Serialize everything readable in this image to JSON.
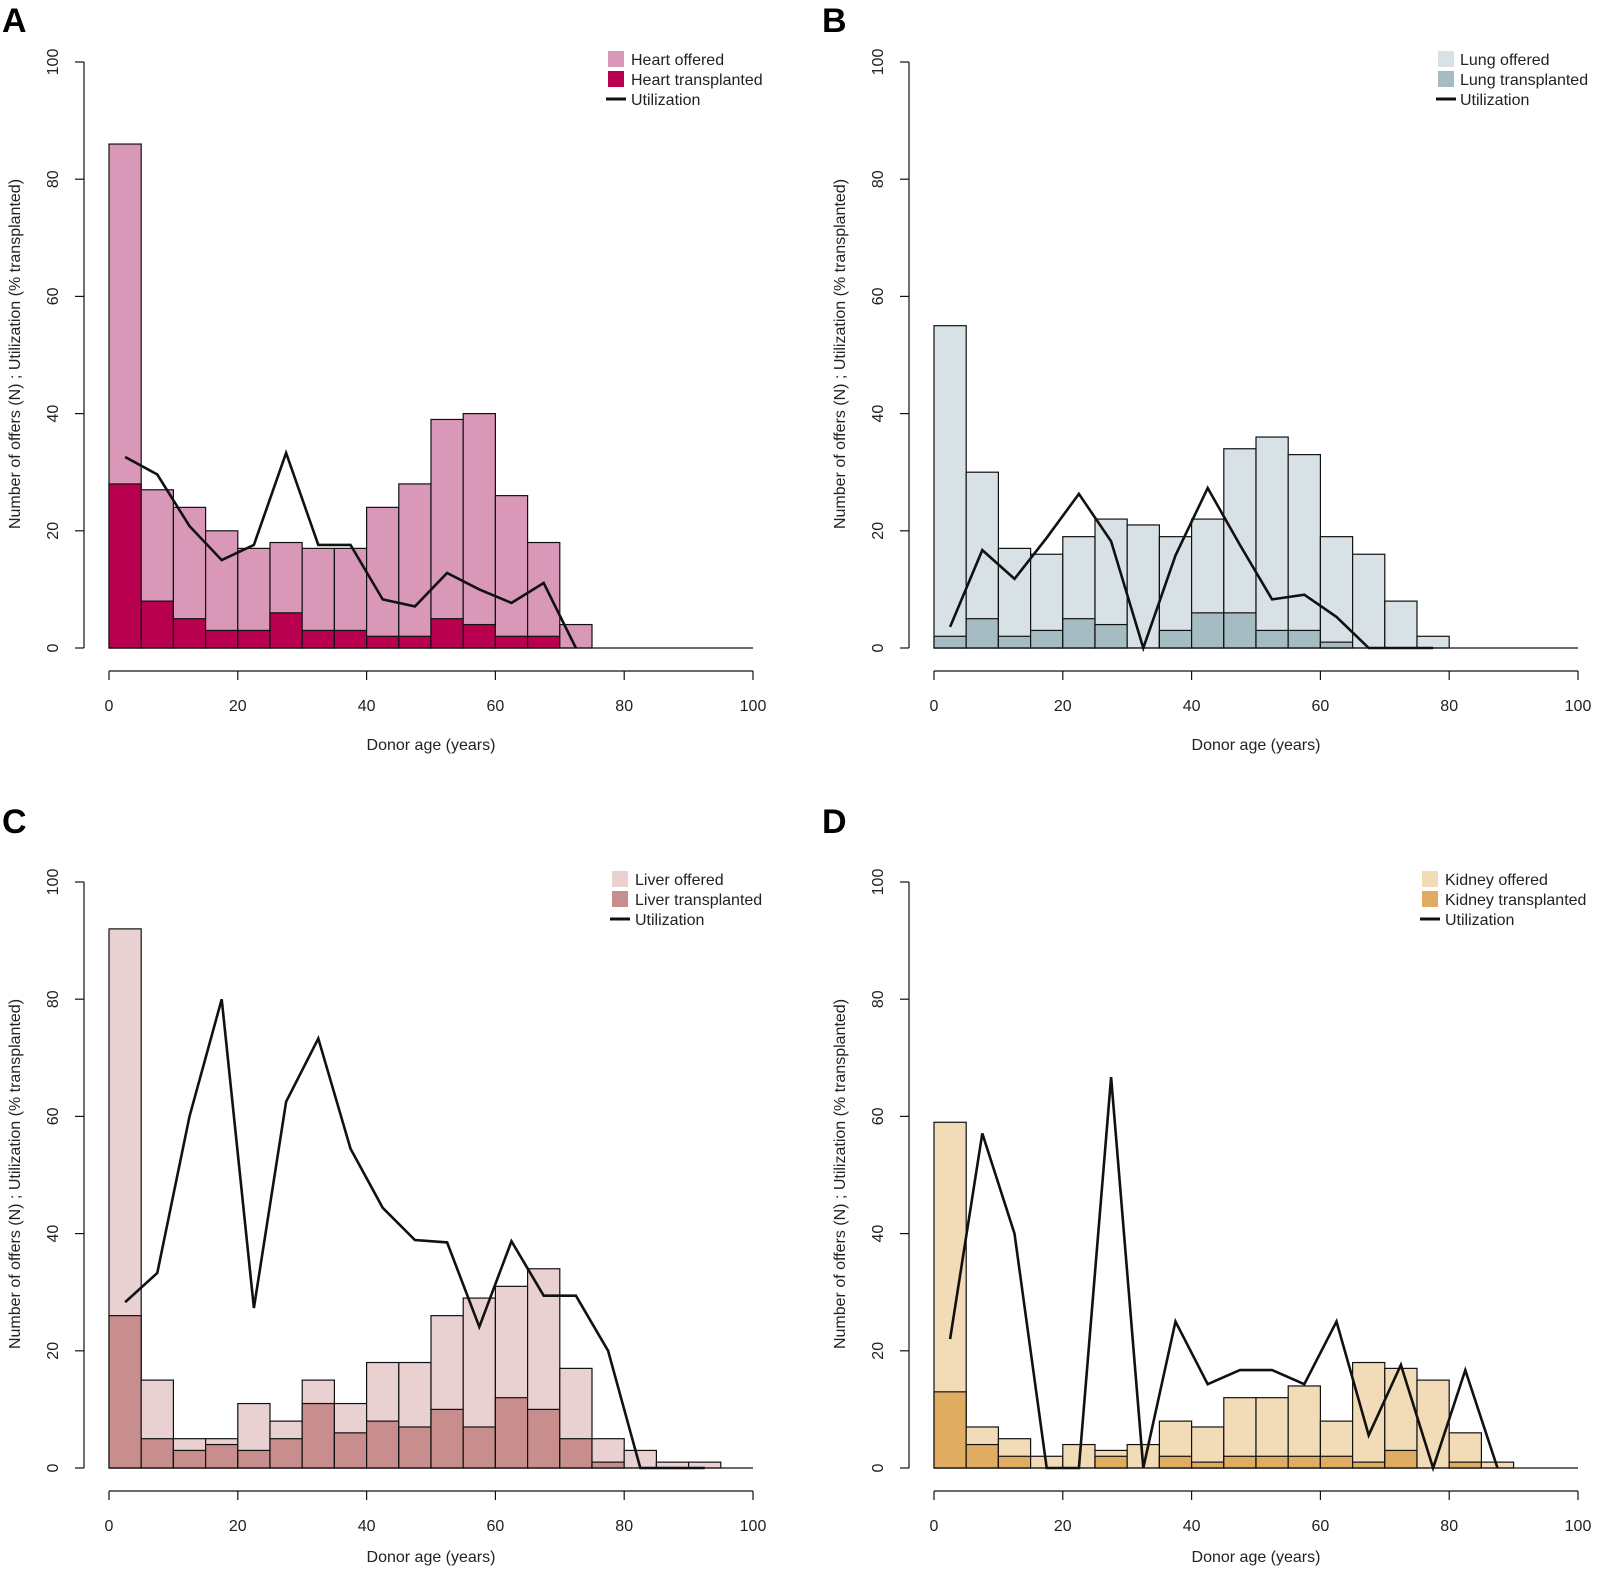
{
  "chart_data": [
    {
      "panel": "A",
      "type": "bar",
      "xlabel": "Donor age (years)",
      "ylabel": "Number of offers (N) ; Utilization (% transplanted)",
      "xlim": [
        0,
        100
      ],
      "ylim": [
        0,
        100
      ],
      "xticks": [
        0,
        20,
        40,
        60,
        80,
        100
      ],
      "yticks": [
        0,
        20,
        40,
        60,
        80,
        100
      ],
      "bin_starts": [
        0,
        5,
        10,
        15,
        20,
        25,
        30,
        35,
        40,
        45,
        50,
        55,
        60,
        65,
        70
      ],
      "bin_width": 5,
      "offered": [
        86,
        27,
        24,
        20,
        17,
        18,
        17,
        17,
        24,
        28,
        39,
        40,
        26,
        18,
        4
      ],
      "transplanted": [
        28,
        8,
        5,
        3,
        3,
        6,
        3,
        3,
        2,
        2,
        5,
        4,
        2,
        2,
        0
      ],
      "utilization_x": [
        2.5,
        7.5,
        12.5,
        17.5,
        22.5,
        27.5,
        32.5,
        37.5,
        42.5,
        47.5,
        52.5,
        57.5,
        62.5,
        67.5,
        72.5
      ],
      "utilization_y": [
        32.6,
        29.6,
        20.8,
        15,
        17.6,
        33.3,
        17.6,
        17.6,
        8.3,
        7.1,
        12.8,
        10,
        7.7,
        11.1,
        0
      ],
      "legend": [
        "Heart offered",
        "Heart transplanted",
        "Utilization"
      ],
      "colors": {
        "offered": "#da98b8",
        "transplanted": "#b8004e",
        "line": "#111111"
      }
    },
    {
      "panel": "B",
      "type": "bar",
      "xlabel": "Donor age (years)",
      "ylabel": "Number of offers (N) ; Utilization (% transplanted)",
      "xlim": [
        0,
        100
      ],
      "ylim": [
        0,
        100
      ],
      "xticks": [
        0,
        20,
        40,
        60,
        80,
        100
      ],
      "yticks": [
        0,
        20,
        40,
        60,
        80,
        100
      ],
      "bin_starts": [
        0,
        5,
        10,
        15,
        20,
        25,
        30,
        35,
        40,
        45,
        50,
        55,
        60,
        65,
        70,
        75
      ],
      "bin_width": 5,
      "offered": [
        55,
        30,
        17,
        16,
        19,
        22,
        21,
        19,
        22,
        34,
        36,
        33,
        19,
        16,
        8,
        2
      ],
      "transplanted": [
        2,
        5,
        2,
        3,
        5,
        4,
        0,
        3,
        6,
        6,
        3,
        3,
        1,
        0,
        0,
        0
      ],
      "utilization_x": [
        2.5,
        7.5,
        12.5,
        17.5,
        22.5,
        27.5,
        32.5,
        37.5,
        42.5,
        47.5,
        52.5,
        57.5,
        62.5,
        67.5,
        72.5,
        77.5
      ],
      "utilization_y": [
        3.6,
        16.7,
        11.8,
        18.8,
        26.3,
        18.2,
        0,
        15.8,
        27.3,
        17.6,
        8.3,
        9.1,
        5.3,
        0,
        0,
        0
      ],
      "legend": [
        "Lung offered",
        "Lung transplanted",
        "Utilization"
      ],
      "colors": {
        "offered": "#d8e2e6",
        "transplanted": "#a6bcc3",
        "line": "#111111"
      }
    },
    {
      "panel": "C",
      "type": "bar",
      "xlabel": "Donor age (years)",
      "ylabel": "Number of offers (N) ; Utilization (% transplanted)",
      "xlim": [
        0,
        100
      ],
      "ylim": [
        0,
        100
      ],
      "xticks": [
        0,
        20,
        40,
        60,
        80,
        100
      ],
      "yticks": [
        0,
        20,
        40,
        60,
        80,
        100
      ],
      "bin_starts": [
        0,
        5,
        10,
        15,
        20,
        25,
        30,
        35,
        40,
        45,
        50,
        55,
        60,
        65,
        70,
        75,
        80,
        85,
        90
      ],
      "bin_width": 5,
      "offered": [
        92,
        15,
        5,
        5,
        11,
        8,
        15,
        11,
        18,
        18,
        26,
        29,
        31,
        34,
        17,
        5,
        3,
        1,
        1
      ],
      "transplanted": [
        26,
        5,
        3,
        4,
        3,
        5,
        11,
        6,
        8,
        7,
        10,
        7,
        12,
        10,
        5,
        1,
        0,
        0,
        0
      ],
      "utilization_x": [
        2.5,
        7.5,
        12.5,
        17.5,
        22.5,
        27.5,
        32.5,
        37.5,
        42.5,
        47.5,
        52.5,
        57.5,
        62.5,
        67.5,
        72.5,
        77.5,
        82.5,
        87.5,
        92.5
      ],
      "utilization_y": [
        28.3,
        33.3,
        60,
        80,
        27.3,
        62.5,
        73.3,
        54.5,
        44.4,
        38.9,
        38.5,
        24.1,
        38.7,
        29.4,
        29.4,
        20,
        0,
        0,
        0
      ],
      "legend": [
        "Liver offered",
        "Liver transplanted",
        "Utilization"
      ],
      "colors": {
        "offered": "#e9d0d1",
        "transplanted": "#c88d8d",
        "line": "#111111"
      }
    },
    {
      "panel": "D",
      "type": "bar",
      "xlabel": "Donor age (years)",
      "ylabel": "Number of offers (N) ; Utilization (% transplanted)",
      "xlim": [
        0,
        100
      ],
      "ylim": [
        0,
        100
      ],
      "xticks": [
        0,
        20,
        40,
        60,
        80,
        100
      ],
      "yticks": [
        0,
        20,
        40,
        60,
        80,
        100
      ],
      "bin_starts": [
        0,
        5,
        10,
        15,
        20,
        25,
        30,
        35,
        40,
        45,
        50,
        55,
        60,
        65,
        70,
        75,
        80,
        85
      ],
      "bin_width": 5,
      "offered": [
        59,
        7,
        5,
        2,
        4,
        3,
        4,
        8,
        7,
        12,
        12,
        14,
        8,
        18,
        17,
        15,
        6,
        1
      ],
      "transplanted": [
        13,
        4,
        2,
        0,
        0,
        2,
        0,
        2,
        1,
        2,
        2,
        2,
        2,
        1,
        3,
        0,
        1,
        0
      ],
      "utilization_x": [
        2.5,
        7.5,
        12.5,
        17.5,
        22.5,
        27.5,
        32.5,
        37.5,
        42.5,
        47.5,
        52.5,
        57.5,
        62.5,
        67.5,
        72.5,
        77.5,
        82.5,
        87.5
      ],
      "utilization_y": [
        22,
        57.1,
        40,
        0,
        0,
        66.7,
        0,
        25,
        14.3,
        16.7,
        16.7,
        14.3,
        25,
        5.6,
        17.6,
        0,
        16.7,
        0
      ],
      "legend": [
        "Kidney offered",
        "Kidney transplanted",
        "Utilization"
      ],
      "colors": {
        "offered": "#f2dcb8",
        "transplanted": "#e0ac62",
        "line": "#111111"
      }
    }
  ]
}
